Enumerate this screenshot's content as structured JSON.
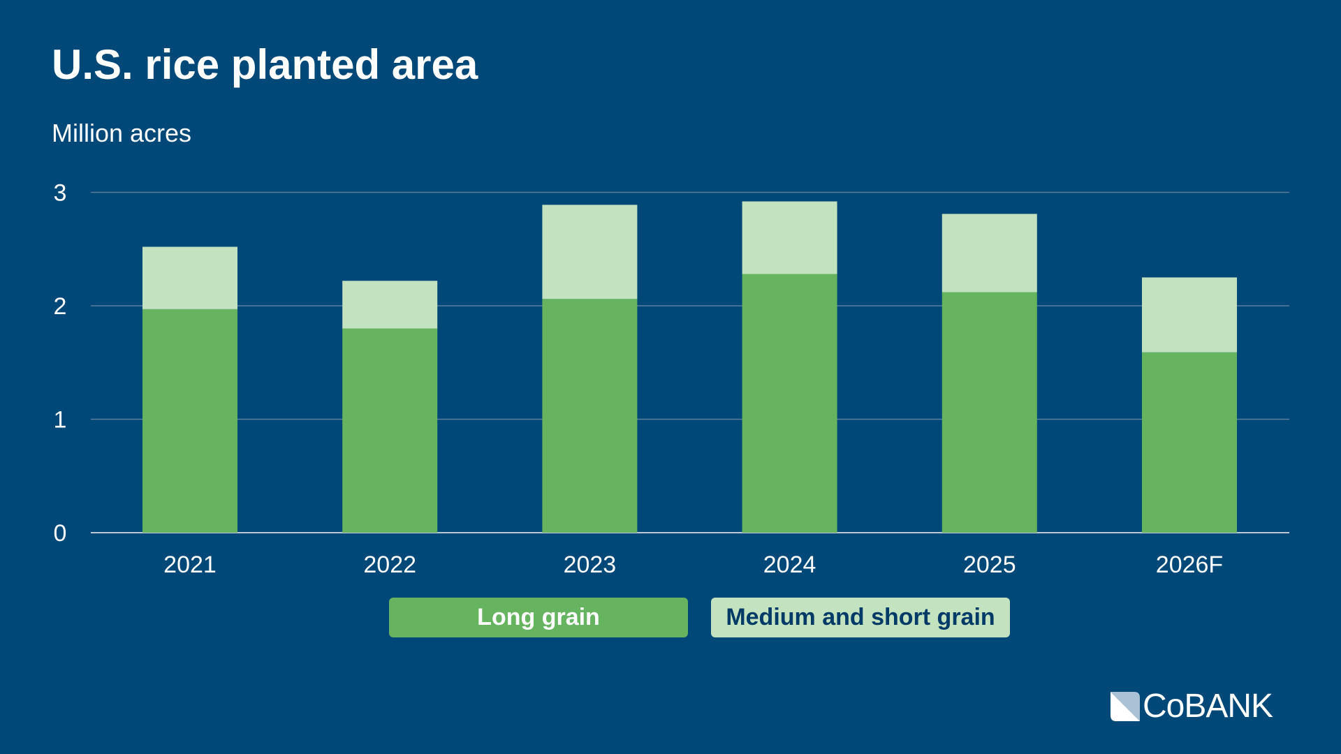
{
  "chart_data": {
    "type": "bar",
    "stacked": true,
    "title": "U.S. rice planted area",
    "ylabel": "Million acres",
    "categories": [
      "2021",
      "2022",
      "2023",
      "2024",
      "2025",
      "2026F"
    ],
    "series": [
      {
        "name": "Long grain",
        "color": "#66b360",
        "values": [
          1.97,
          1.8,
          2.06,
          2.28,
          2.12,
          1.59
        ]
      },
      {
        "name": "Medium and short grain",
        "color": "#c3e2c0",
        "values": [
          0.55,
          0.42,
          0.83,
          0.64,
          0.69,
          0.66
        ]
      }
    ],
    "ylim": [
      0,
      3
    ],
    "yticks": [
      "0",
      "1",
      "2",
      "3"
    ],
    "grid": true,
    "legend_placement": "bottom"
  },
  "colors": {
    "background": "#004877",
    "gridline": "#5a7fa0"
  },
  "logo": {
    "text": "CoBANK"
  }
}
